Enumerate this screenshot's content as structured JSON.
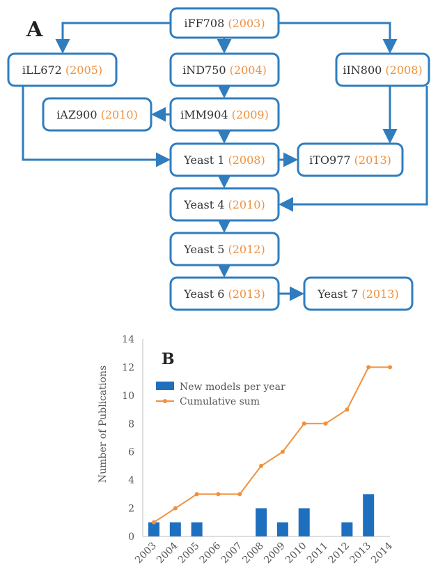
{
  "panel_a": {
    "label": "A",
    "nodes": [
      {
        "id": "iFF708",
        "name": "iFF708",
        "year": "(2003)"
      },
      {
        "id": "iLL672",
        "name": "iLL672",
        "year": "(2005)"
      },
      {
        "id": "iND750",
        "name": "iND750",
        "year": "(2004)"
      },
      {
        "id": "iIN800",
        "name": "iIN800",
        "year": "(2008)"
      },
      {
        "id": "iAZ900",
        "name": "iAZ900",
        "year": "(2010)"
      },
      {
        "id": "iMM904",
        "name": "iMM904",
        "year": "(2009)"
      },
      {
        "id": "yeast1",
        "name": "Yeast 1",
        "year": "(2008)"
      },
      {
        "id": "iTO977",
        "name": "iTO977",
        "year": "(2013)"
      },
      {
        "id": "yeast4",
        "name": "Yeast 4",
        "year": "(2010)"
      },
      {
        "id": "yeast5",
        "name": "Yeast 5",
        "year": "(2012)"
      },
      {
        "id": "yeast6",
        "name": "Yeast 6",
        "year": "(2013)"
      },
      {
        "id": "yeast7",
        "name": "Yeast 7",
        "year": "(2013)"
      }
    ],
    "edges": [
      [
        "iFF708",
        "iLL672"
      ],
      [
        "iFF708",
        "iND750"
      ],
      [
        "iFF708",
        "iIN800"
      ],
      [
        "iND750",
        "iMM904"
      ],
      [
        "iMM904",
        "iAZ900"
      ],
      [
        "iMM904",
        "yeast1"
      ],
      [
        "iLL672",
        "yeast1"
      ],
      [
        "iIN800",
        "iTO977"
      ],
      [
        "iIN800",
        "yeast4"
      ],
      [
        "yeast1",
        "iTO977"
      ],
      [
        "yeast1",
        "yeast4"
      ],
      [
        "yeast4",
        "yeast5"
      ],
      [
        "yeast5",
        "yeast6"
      ],
      [
        "yeast6",
        "yeast7"
      ]
    ]
  },
  "chart_data": {
    "panel_label": "B",
    "type": "bar",
    "categories": [
      "2003",
      "2004",
      "2005",
      "2006",
      "2007",
      "2008",
      "2009",
      "2010",
      "2011",
      "2012",
      "2013",
      "2014"
    ],
    "series": [
      {
        "name": "New models per year",
        "type": "bar",
        "color": "#1f6fbf",
        "values": [
          1,
          1,
          1,
          0,
          0,
          2,
          1,
          2,
          0,
          1,
          3,
          0
        ]
      },
      {
        "name": "Cumulative sum",
        "type": "line",
        "color": "#f0913c",
        "values": [
          1,
          2,
          3,
          3,
          3,
          5,
          6,
          8,
          8,
          9,
          12,
          12
        ]
      }
    ],
    "ylabel": "Number of Publications",
    "ylim": [
      0,
      14
    ],
    "yticks": [
      "0",
      "2",
      "4",
      "6",
      "8",
      "10",
      "12",
      "14"
    ],
    "legend": "top-left",
    "grid": false
  }
}
